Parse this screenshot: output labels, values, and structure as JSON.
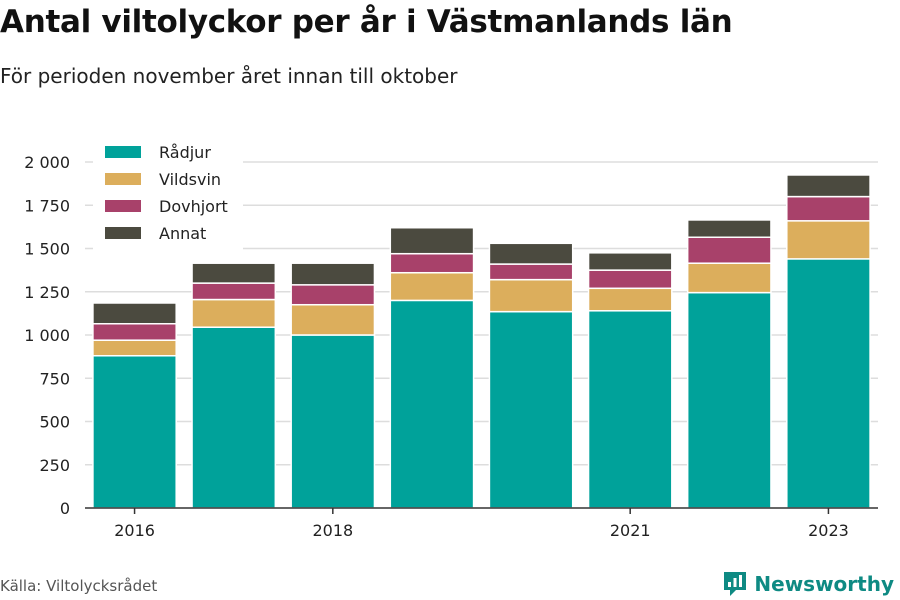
{
  "title": "Antal viltolyckor per år i Västmanlands län",
  "subtitle": "För perioden november året innan till oktober",
  "source": "Källa: Viltolycksrådet",
  "brand": "Newsworthy",
  "colors": {
    "radjur": "#00a29a",
    "vildsvin": "#dcae5c",
    "dovhjort": "#a8416a",
    "annat": "#4b4a3f",
    "grid": "#dddddd",
    "axis": "#333333",
    "brand": "#0e8a83"
  },
  "chart_data": {
    "type": "bar",
    "stacked": true,
    "categories": [
      "2016",
      "2017",
      "2018",
      "2019",
      "2020",
      "2021",
      "2022",
      "2023"
    ],
    "x_tick_labels": [
      "2016",
      "",
      "2018",
      "",
      "",
      "2021",
      "",
      "2023"
    ],
    "series": [
      {
        "name": "Rådjur",
        "color": "#00a29a",
        "values": [
          880,
          1045,
          1000,
          1200,
          1135,
          1140,
          1245,
          1440
        ]
      },
      {
        "name": "Vildsvin",
        "color": "#dcae5c",
        "values": [
          90,
          160,
          175,
          160,
          185,
          130,
          170,
          220
        ]
      },
      {
        "name": "Dovhjort",
        "color": "#a8416a",
        "values": [
          95,
          95,
          115,
          110,
          90,
          105,
          150,
          140
        ]
      },
      {
        "name": "Annat",
        "color": "#4b4a3f",
        "values": [
          120,
          115,
          125,
          150,
          120,
          100,
          100,
          125
        ]
      }
    ],
    "ylim": [
      0,
      2000
    ],
    "yticks": [
      0,
      250,
      500,
      750,
      1000,
      1250,
      1500,
      1750,
      2000
    ],
    "ytick_labels": [
      "0",
      "250",
      "500",
      "750",
      "1 000",
      "1 250",
      "1 500",
      "1 750",
      "2 000"
    ],
    "grid": true,
    "legend_position": "top-left"
  }
}
